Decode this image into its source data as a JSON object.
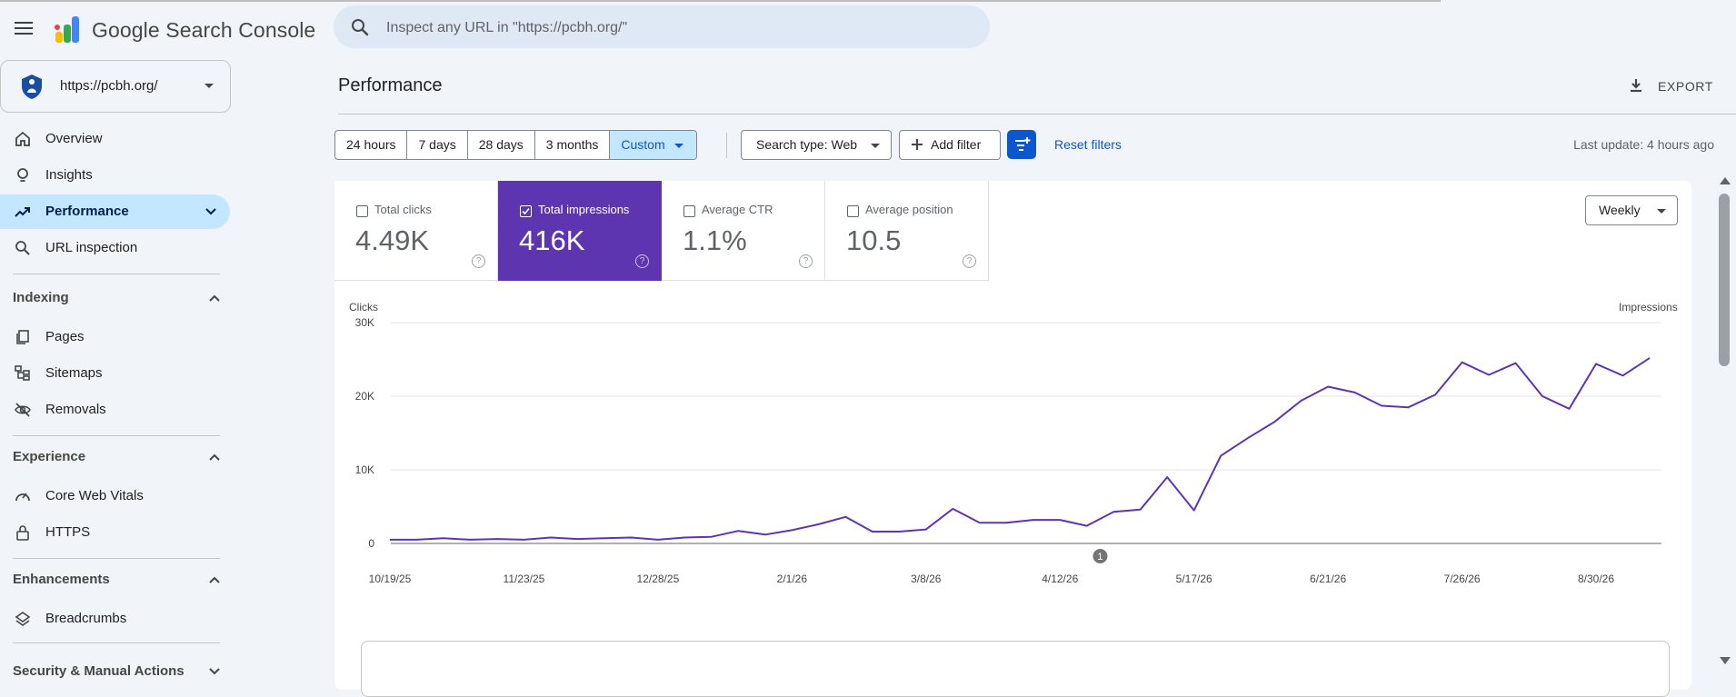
{
  "app": {
    "title": "Google Search Console"
  },
  "search": {
    "placeholder": "Inspect any URL in \"https://pcbh.org/\""
  },
  "property": {
    "url": "https://pcbh.org/"
  },
  "sidebar": {
    "items": [
      {
        "label": "Overview",
        "icon": "home-icon"
      },
      {
        "label": "Insights",
        "icon": "lightbulb-icon"
      },
      {
        "label": "Performance",
        "icon": "trending-up-icon",
        "active": true
      },
      {
        "label": "URL inspection",
        "icon": "search-icon"
      }
    ],
    "sections": [
      {
        "label": "Indexing",
        "items": [
          {
            "label": "Pages",
            "icon": "pages-icon"
          },
          {
            "label": "Sitemaps",
            "icon": "sitemap-icon"
          },
          {
            "label": "Removals",
            "icon": "eye-off-icon"
          }
        ]
      },
      {
        "label": "Experience",
        "items": [
          {
            "label": "Core Web Vitals",
            "icon": "gauge-icon"
          },
          {
            "label": "HTTPS",
            "icon": "lock-icon"
          }
        ]
      },
      {
        "label": "Enhancements",
        "items": [
          {
            "label": "Breadcrumbs",
            "icon": "layers-icon"
          }
        ]
      },
      {
        "label": "Security & Manual Actions",
        "items": []
      }
    ]
  },
  "main": {
    "title": "Performance",
    "export_label": "EXPORT",
    "date_ranges": [
      "24 hours",
      "7 days",
      "28 days",
      "3 months",
      "Custom"
    ],
    "selected_range": "Custom",
    "search_type": "Search type: Web",
    "add_filter": "Add filter",
    "reset_filters": "Reset filters",
    "last_update": "Last update: 4 hours ago",
    "metrics": [
      {
        "label": "Total clicks",
        "value": "4.49K",
        "checked": false
      },
      {
        "label": "Total impressions",
        "value": "416K",
        "checked": true
      },
      {
        "label": "Average CTR",
        "value": "1.1%",
        "checked": false
      },
      {
        "label": "Average position",
        "value": "10.5",
        "checked": false
      }
    ],
    "granularity": "Weekly",
    "accent_color": "#5e35b1",
    "brand_blue": "#0b57d0"
  },
  "chart_data": {
    "type": "line",
    "left_axis_label": "Clicks",
    "right_axis_label": "Impressions",
    "y_tick_labels": [
      "0",
      "10K",
      "20K",
      "30K"
    ],
    "ylim": [
      0,
      30000
    ],
    "x_tick_labels": [
      "10/19/25",
      "11/23/25",
      "12/28/25",
      "2/1/26",
      "3/8/26",
      "4/12/26",
      "5/17/26",
      "6/21/26",
      "7/26/26",
      "8/30/26"
    ],
    "annotation": {
      "label": "1",
      "after_week": 26
    },
    "grid": true,
    "series": [
      {
        "color": "#5e35b1",
        "values": [
          500,
          500,
          700,
          500,
          600,
          500,
          800,
          600,
          700,
          800,
          500,
          800,
          900,
          1700,
          1200,
          1800,
          2600,
          3600,
          1600,
          1600,
          1900,
          4700,
          2800,
          2800,
          3200,
          3200,
          2400,
          4300,
          4600,
          9000,
          4500,
          11900,
          14300,
          16500,
          19400,
          21300,
          20500,
          18700,
          18500,
          20200,
          24600,
          22900,
          24500,
          20000,
          18300,
          24400,
          22800,
          25200
        ]
      }
    ]
  }
}
